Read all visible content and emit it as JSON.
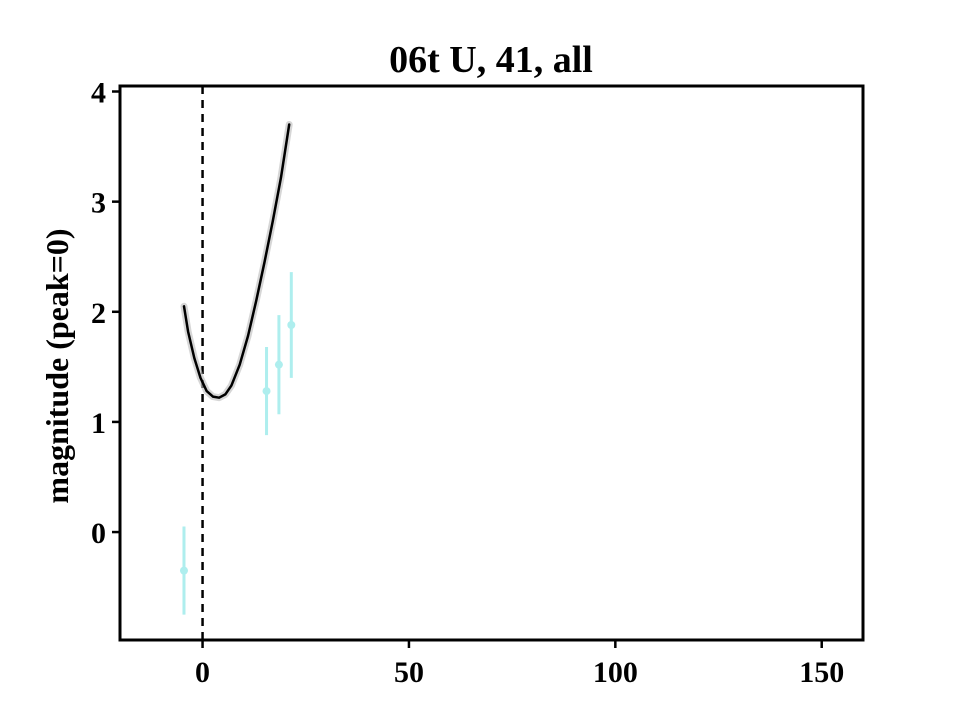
{
  "chart_data": {
    "type": "scatter",
    "title": "06t U, 41, all",
    "xlabel": "",
    "ylabel": "magnitude (peak=0)",
    "xlim": [
      -20,
      160
    ],
    "ylim": [
      4.05,
      -0.98
    ],
    "y_inverted": true,
    "xticks": [
      0,
      50,
      100,
      150
    ],
    "yticks": [
      0,
      1,
      2,
      3,
      4
    ],
    "grid": false,
    "reference_line": {
      "x": 0,
      "style": "dashed",
      "color": "#000000"
    },
    "series": [
      {
        "kind": "points",
        "color": "#aeeeee",
        "points": [
          {
            "x": -4.5,
            "y": -0.35,
            "err": 0.4
          },
          {
            "x": 15.5,
            "y": 1.28,
            "err": 0.4
          },
          {
            "x": 18.5,
            "y": 1.52,
            "err": 0.45
          },
          {
            "x": 21.5,
            "y": 1.88,
            "err": 0.48
          }
        ]
      },
      {
        "kind": "line",
        "color": "#000000",
        "band_color": "#bbbbbb",
        "points": [
          {
            "x": -4.5,
            "y": 2.05
          },
          {
            "x": -3.5,
            "y": 1.82
          },
          {
            "x": -2.0,
            "y": 1.58
          },
          {
            "x": -0.5,
            "y": 1.4
          },
          {
            "x": 1.0,
            "y": 1.28
          },
          {
            "x": 2.5,
            "y": 1.23
          },
          {
            "x": 4.0,
            "y": 1.22
          },
          {
            "x": 5.5,
            "y": 1.25
          },
          {
            "x": 7.0,
            "y": 1.33
          },
          {
            "x": 9.0,
            "y": 1.52
          },
          {
            "x": 11.0,
            "y": 1.78
          },
          {
            "x": 13.0,
            "y": 2.1
          },
          {
            "x": 15.0,
            "y": 2.45
          },
          {
            "x": 17.0,
            "y": 2.82
          },
          {
            "x": 19.0,
            "y": 3.22
          },
          {
            "x": 21.0,
            "y": 3.7
          }
        ]
      }
    ]
  }
}
